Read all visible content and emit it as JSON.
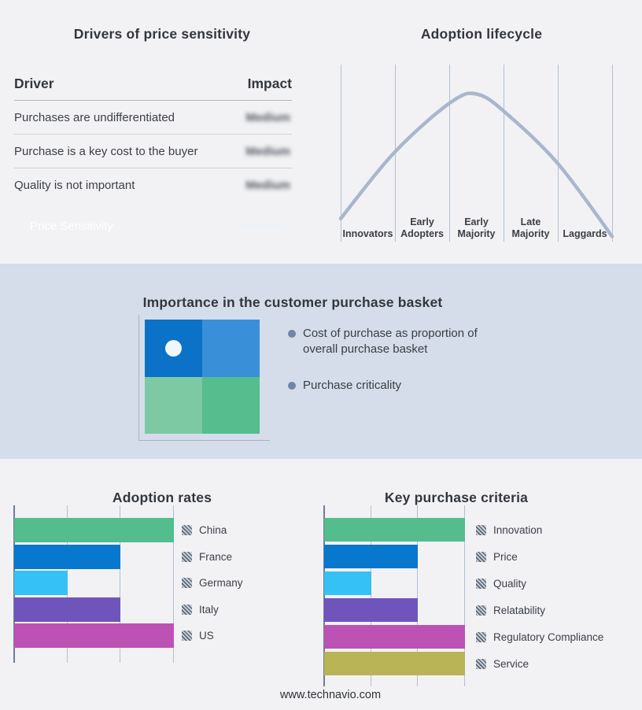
{
  "drivers_table": {
    "title": "Drivers of price sensitivity",
    "columns": {
      "driver": "Driver",
      "impact": "Impact"
    },
    "rows": [
      {
        "driver": "Purchases are undifferentiated",
        "impact": "Medium"
      },
      {
        "driver": "Purchase is a key cost to the buyer",
        "impact": "Medium"
      },
      {
        "driver": "Quality is not important",
        "impact": "Medium"
      }
    ],
    "summary_row": {
      "label": "Price Sensitivity",
      "impact": "Medium"
    },
    "impact_values_blurred": true
  },
  "basket": {
    "title": "Importance in the customer purchase basket",
    "bullets": [
      "Cost of purchase as proportion of overall purchase basket",
      "Purchase criticality"
    ],
    "matrix_colors": {
      "top_left": "#0b72c7",
      "top_right": "#3990d9",
      "bottom_left": "#7dc9a3",
      "bottom_right": "#55bd8e"
    },
    "marker": "white-dot-in-top-left-quadrant"
  },
  "footer": {
    "website": "www.technavio.com"
  },
  "colors": {
    "page_background": "#f2f2f4",
    "band_background": "#d4dde9",
    "accent_blue": "#0a79d0",
    "curve": "#a9b7cc",
    "gridline": "#b5c0d3",
    "bullet_marker": "#6f86a4"
  },
  "chart_data": [
    {
      "name": "adoption-lifecycle",
      "type": "line",
      "title": "Adoption lifecycle",
      "categories": [
        "Innovators",
        "Early Adopters",
        "Early Majority",
        "Late Majority",
        "Laggards"
      ],
      "description": "Bell-shaped adoption curve peaking within the Early Majority segment",
      "curve_points_pct": [
        [
          0,
          87
        ],
        [
          19.7,
          49.8
        ],
        [
          40.6,
          21.3
        ],
        [
          50.7,
          16.9
        ],
        [
          62.3,
          29.3
        ],
        [
          80.3,
          56.4
        ],
        [
          100,
          97
        ]
      ],
      "grid": "vertical section dividers, no y-axis",
      "line_color": "#a9b7cc"
    },
    {
      "name": "adoption-rates",
      "type": "bar",
      "orientation": "horizontal",
      "title": "Adoption rates",
      "categories": [
        "China",
        "France",
        "Germany",
        "Italy",
        "US"
      ],
      "values": [
        3,
        2,
        1,
        2,
        3
      ],
      "xlim": [
        0,
        3
      ],
      "gridlines": [
        1,
        2,
        3
      ],
      "colors": [
        "#53bd8e",
        "#0778cd",
        "#35c1f5",
        "#6f55bb",
        "#bd52b5"
      ],
      "legend_position": "right"
    },
    {
      "name": "key-purchase-criteria",
      "type": "bar",
      "orientation": "horizontal",
      "title": "Key purchase criteria",
      "categories": [
        "Innovation",
        "Price",
        "Quality",
        "Relatability",
        "Regulatory Compliance",
        "Service"
      ],
      "values": [
        3,
        2,
        1,
        2,
        3,
        3
      ],
      "xlim": [
        0,
        3
      ],
      "gridlines": [
        1,
        2,
        3
      ],
      "colors": [
        "#53bd8e",
        "#0778cd",
        "#35c1f5",
        "#6f55bb",
        "#bd52b5",
        "#b9b456"
      ],
      "legend_position": "right"
    }
  ]
}
